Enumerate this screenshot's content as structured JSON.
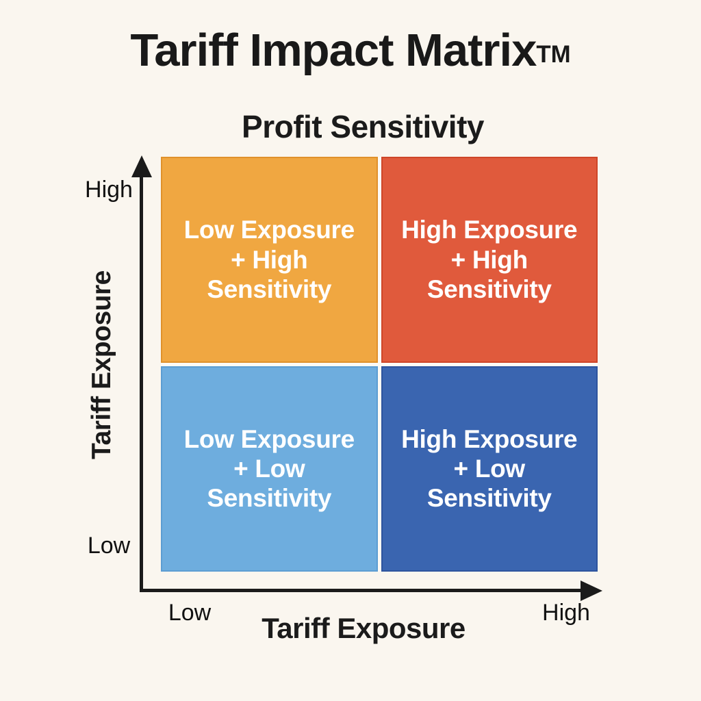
{
  "title": {
    "text": "Tariff Impact Matrix",
    "trademark": "TM"
  },
  "top_axis_title": "Profit Sensitivity",
  "y_axis": {
    "label": "Tariff Exposure",
    "high_tick": "High",
    "low_tick": "Low"
  },
  "x_axis": {
    "label": "Tariff Exposure",
    "low_tick": "Low",
    "high_tick": "High"
  },
  "quadrants": [
    {
      "position": "top-left",
      "label": "Low Exposure\n+ High\nSensitivity",
      "color": "#F0A741",
      "border_color": "#E0912B"
    },
    {
      "position": "top-right",
      "label": "High Exposure\n+ High\nSensitivity",
      "color": "#E05A3C",
      "border_color": "#CE4628"
    },
    {
      "position": "bottom-left",
      "label": "Low Exposure\n+ Low\nSensitivity",
      "color": "#6EADDE",
      "border_color": "#5C9DD2"
    },
    {
      "position": "bottom-right",
      "label": "High Exposure\n+ Low\nSensitivity",
      "color": "#3A65B0",
      "border_color": "#2D549E"
    }
  ],
  "colors": {
    "background": "#FAF6EF",
    "axis": "#1B1B1B",
    "heading_text": "#191919",
    "tick_text": "#111111",
    "quadrant_text": "#FFFFFF",
    "grid_gap": "#FDFAF5"
  }
}
